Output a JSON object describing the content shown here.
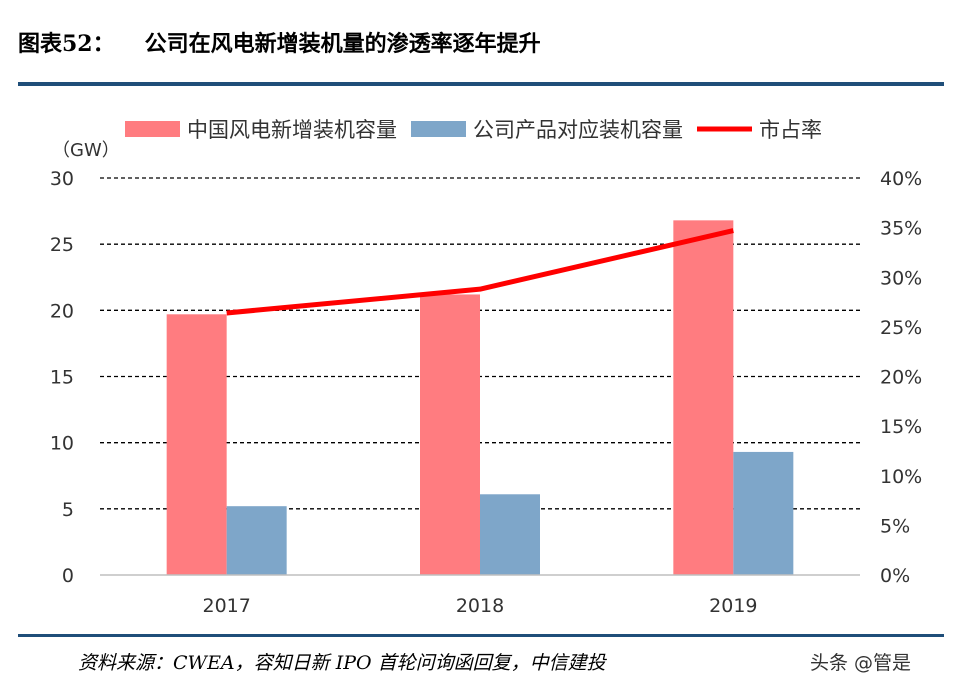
{
  "header": {
    "figure_label": "图表52：",
    "title": "公司在风电新增装机量的渗透率逐年提升"
  },
  "footer": {
    "source": "资料来源：CWEA，容知日新 IPO 首轮问询函回复，中信建投",
    "watermark": "头条 @管是"
  },
  "chart_data": {
    "type": "bar",
    "categories": [
      "2017",
      "2018",
      "2019"
    ],
    "series": [
      {
        "name": "中国风电新增装机容量",
        "type": "bar",
        "axis": "left",
        "color": "#ff7c80",
        "values": [
          19.7,
          21.2,
          26.8
        ]
      },
      {
        "name": "公司产品对应装机容量",
        "type": "bar",
        "axis": "left",
        "color": "#7ea6c9",
        "values": [
          5.2,
          6.1,
          9.3
        ]
      },
      {
        "name": "市占率",
        "type": "line",
        "axis": "right",
        "color": "#ff0000",
        "values": [
          26.4,
          28.8,
          34.7
        ]
      }
    ],
    "ylabel": "（GW）",
    "ylim": [
      0,
      30
    ],
    "y_ticks": [
      "0",
      "5",
      "10",
      "15",
      "20",
      "25",
      "30"
    ],
    "y2lim": [
      0,
      40
    ],
    "y2_ticks": [
      "0%",
      "5%",
      "10%",
      "15%",
      "20%",
      "25%",
      "30%",
      "35%",
      "40%"
    ],
    "grid": "dashed horizontal",
    "legend": "top"
  }
}
